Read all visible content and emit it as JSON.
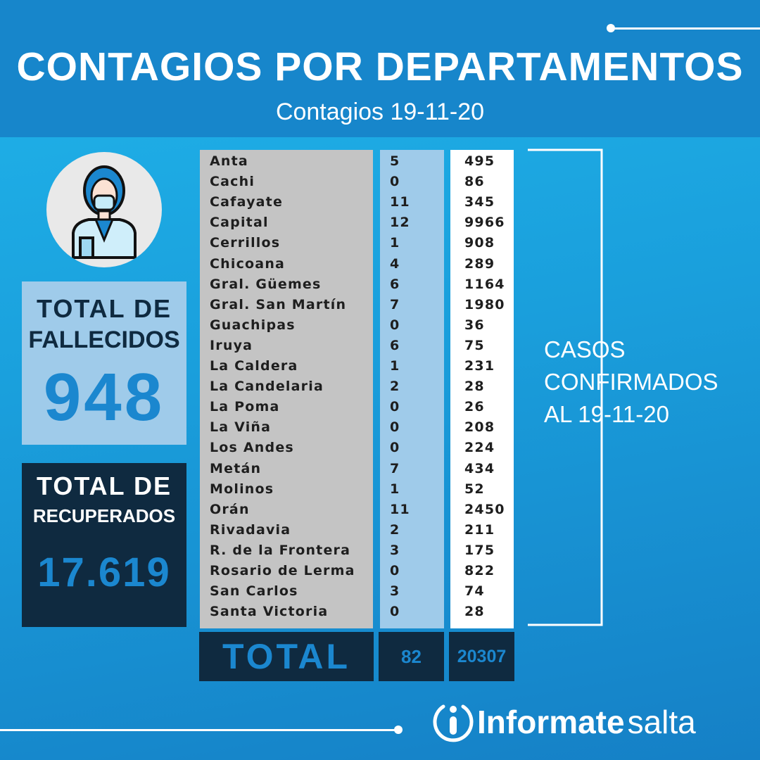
{
  "header": {
    "title": "CONTAGIOS POR DEPARTAMENTOS",
    "subtitle": "Contagios 19-11-20"
  },
  "fallecidos": {
    "label1": "TOTAL DE",
    "label2": "FALLECIDOS",
    "value": "948"
  },
  "recuperados": {
    "label1": "TOTAL DE",
    "label2": "RECUPERADOS",
    "value": "17.619"
  },
  "table": {
    "rows": [
      {
        "name": "Anta",
        "today": "5",
        "total": "495"
      },
      {
        "name": "Cachi",
        "today": "0",
        "total": "86"
      },
      {
        "name": "Cafayate",
        "today": "11",
        "total": "345"
      },
      {
        "name": "Capital",
        "today": "12",
        "total": "9966"
      },
      {
        "name": "Cerrillos",
        "today": "1",
        "total": "908"
      },
      {
        "name": "Chicoana",
        "today": "4",
        "total": "289"
      },
      {
        "name": "Gral. Güemes",
        "today": "6",
        "total": "1164"
      },
      {
        "name": "Gral. San Martín",
        "today": "7",
        "total": "1980"
      },
      {
        "name": "Guachipas",
        "today": "0",
        "total": "36"
      },
      {
        "name": "Iruya",
        "today": "6",
        "total": "75"
      },
      {
        "name": "La Caldera",
        "today": "1",
        "total": "231"
      },
      {
        "name": "La Candelaria",
        "today": "2",
        "total": "28"
      },
      {
        "name": "La Poma",
        "today": "0",
        "total": "26"
      },
      {
        "name": "La Viña",
        "today": "0",
        "total": "208"
      },
      {
        "name": "Los Andes",
        "today": "0",
        "total": "224"
      },
      {
        "name": "Metán",
        "today": "7",
        "total": "434"
      },
      {
        "name": "Molinos",
        "today": "1",
        "total": "52"
      },
      {
        "name": "Orán",
        "today": "11",
        "total": "2450"
      },
      {
        "name": "Rivadavia",
        "today": "2",
        "total": "211"
      },
      {
        "name": "R. de la Frontera",
        "today": "3",
        "total": "175"
      },
      {
        "name": "Rosario de Lerma",
        "today": "0",
        "total": "822"
      },
      {
        "name": "San Carlos",
        "today": "3",
        "total": "74"
      },
      {
        "name": "Santa Victoria",
        "today": "0",
        "total": "28"
      }
    ],
    "total_label": "TOTAL",
    "total_today": "82",
    "total_cases": "20307"
  },
  "casos": {
    "line1": "CASOS",
    "line2": "CONFIRMADOS",
    "line3": "AL 19-11-20"
  },
  "logo": {
    "bold": "Informate",
    "light": "salta"
  },
  "colors": {
    "header": "#1786cb",
    "accent": "#1b87cf",
    "dark": "#0f2a40",
    "light_blue": "#9fcbea",
    "gray": "#c4c4c4"
  }
}
